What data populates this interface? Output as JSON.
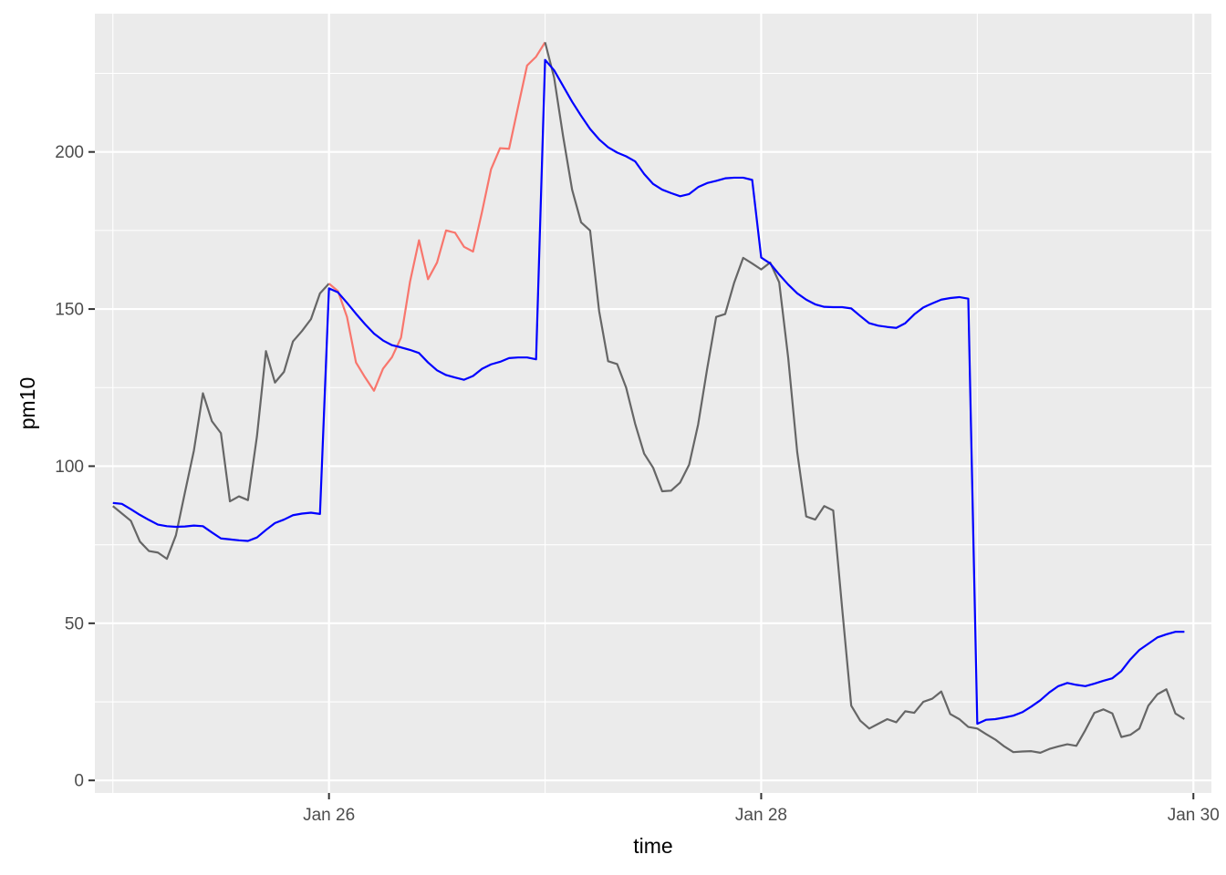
{
  "chart_data": {
    "type": "line",
    "title": "",
    "xlabel": "time",
    "ylabel": "pm10",
    "xlim": [
      "2024-01-24T22:00",
      "2024-01-30T02:00"
    ],
    "ylim": [
      -4,
      244
    ],
    "x_ticks": [
      {
        "value": "2024-01-26T00:00",
        "label": "Jan 26"
      },
      {
        "value": "2024-01-28T00:00",
        "label": "Jan 28"
      },
      {
        "value": "2024-01-30T00:00",
        "label": "Jan 30"
      }
    ],
    "y_ticks": [
      {
        "value": 0,
        "label": "0"
      },
      {
        "value": 50,
        "label": "50"
      },
      {
        "value": 100,
        "label": "100"
      },
      {
        "value": 150,
        "label": "150"
      },
      {
        "value": 200,
        "label": "200"
      }
    ],
    "grid": true,
    "legend": "none",
    "colors": {
      "panel": "#ebebeb",
      "gridline": "#ffffff",
      "observed": "#666666",
      "highlight": "#f8766d",
      "forecast": "#0000ff"
    },
    "series": [
      {
        "color": "#666666",
        "points": [
          [
            "2024-01-25T00:00",
            87.3
          ],
          [
            "2024-01-25T02:00",
            82.6
          ],
          [
            "2024-01-25T03:00",
            76.0
          ],
          [
            "2024-01-25T04:00",
            73.0
          ],
          [
            "2024-01-25T05:00",
            72.5
          ],
          [
            "2024-01-25T06:00",
            70.5
          ],
          [
            "2024-01-25T07:00",
            78.0
          ],
          [
            "2024-01-25T08:00",
            91.6
          ],
          [
            "2024-01-25T09:00",
            105.0
          ],
          [
            "2024-01-25T10:00",
            123.2
          ],
          [
            "2024-01-25T11:00",
            114.3
          ],
          [
            "2024-01-25T12:00",
            110.5
          ],
          [
            "2024-01-25T13:00",
            88.8
          ],
          [
            "2024-01-25T14:00",
            90.4
          ],
          [
            "2024-01-25T15:00",
            89.2
          ],
          [
            "2024-01-25T16:00",
            109.5
          ],
          [
            "2024-01-25T17:00",
            136.6
          ],
          [
            "2024-01-25T18:00",
            126.6
          ],
          [
            "2024-01-25T19:00",
            130.0
          ],
          [
            "2024-01-25T20:00",
            139.7
          ],
          [
            "2024-01-25T21:00",
            143.0
          ],
          [
            "2024-01-25T22:00",
            146.8
          ],
          [
            "2024-01-25T23:00",
            155.0
          ],
          [
            "2024-01-26T00:00",
            158.1
          ]
        ]
      },
      {
        "color": "#f8766d",
        "points": [
          [
            "2024-01-26T00:00",
            158.1
          ],
          [
            "2024-01-26T01:00",
            155.7
          ],
          [
            "2024-01-26T02:00",
            147.5
          ],
          [
            "2024-01-26T03:00",
            133.0
          ],
          [
            "2024-01-26T04:00",
            128.3
          ],
          [
            "2024-01-26T05:00",
            124.0
          ],
          [
            "2024-01-26T06:00",
            131.0
          ],
          [
            "2024-01-26T07:00",
            134.7
          ],
          [
            "2024-01-26T08:00",
            140.9
          ],
          [
            "2024-01-26T09:00",
            158.7
          ],
          [
            "2024-01-26T10:00",
            171.9
          ],
          [
            "2024-01-26T11:00",
            159.5
          ],
          [
            "2024-01-26T12:00",
            164.8
          ],
          [
            "2024-01-26T13:00",
            175.0
          ],
          [
            "2024-01-26T14:00",
            174.3
          ],
          [
            "2024-01-26T15:00",
            169.8
          ],
          [
            "2024-01-26T16:00",
            168.3
          ],
          [
            "2024-01-26T17:00",
            181.0
          ],
          [
            "2024-01-26T18:00",
            194.5
          ],
          [
            "2024-01-26T19:00",
            201.2
          ],
          [
            "2024-01-26T20:00",
            201.0
          ],
          [
            "2024-01-26T21:00",
            214.3
          ],
          [
            "2024-01-26T22:00",
            227.5
          ],
          [
            "2024-01-26T23:00",
            230.3
          ],
          [
            "2024-01-27T00:00",
            234.9
          ]
        ]
      },
      {
        "color": "#666666",
        "points": [
          [
            "2024-01-27T00:00",
            234.9
          ],
          [
            "2024-01-27T01:00",
            223.7
          ],
          [
            "2024-01-27T02:00",
            205.0
          ],
          [
            "2024-01-27T03:00",
            188.0
          ],
          [
            "2024-01-27T04:00",
            177.6
          ],
          [
            "2024-01-27T05:00",
            175.0
          ],
          [
            "2024-01-27T06:00",
            149.4
          ],
          [
            "2024-01-27T07:00",
            133.4
          ],
          [
            "2024-01-27T08:00",
            132.5
          ],
          [
            "2024-01-27T09:00",
            125.0
          ],
          [
            "2024-01-27T10:00",
            113.5
          ],
          [
            "2024-01-27T11:00",
            104.0
          ],
          [
            "2024-01-27T12:00",
            99.5
          ],
          [
            "2024-01-27T13:00",
            92.0
          ],
          [
            "2024-01-27T14:00",
            92.2
          ],
          [
            "2024-01-27T15:00",
            94.8
          ],
          [
            "2024-01-27T16:00",
            100.5
          ],
          [
            "2024-01-27T17:00",
            113.3
          ],
          [
            "2024-01-27T18:00",
            131.0
          ],
          [
            "2024-01-27T19:00",
            147.5
          ],
          [
            "2024-01-27T20:00",
            148.4
          ],
          [
            "2024-01-27T21:00",
            158.4
          ],
          [
            "2024-01-27T22:00",
            166.3
          ],
          [
            "2024-01-27T23:00",
            164.5
          ],
          [
            "2024-01-28T00:00",
            162.6
          ],
          [
            "2024-01-28T01:00",
            164.8
          ],
          [
            "2024-01-28T02:00",
            158.5
          ],
          [
            "2024-01-28T03:00",
            134.5
          ],
          [
            "2024-01-28T04:00",
            104.5
          ],
          [
            "2024-01-28T05:00",
            84.0
          ],
          [
            "2024-01-28T06:00",
            83.0
          ],
          [
            "2024-01-28T07:00",
            87.3
          ],
          [
            "2024-01-28T08:00",
            85.9
          ],
          [
            "2024-01-28T09:00",
            54.5
          ],
          [
            "2024-01-28T10:00",
            23.8
          ],
          [
            "2024-01-28T11:00",
            19.0
          ],
          [
            "2024-01-28T12:00",
            16.5
          ],
          [
            "2024-01-28T13:00",
            18.0
          ],
          [
            "2024-01-28T14:00",
            19.5
          ],
          [
            "2024-01-28T15:00",
            18.5
          ],
          [
            "2024-01-28T16:00",
            22.0
          ],
          [
            "2024-01-28T17:00",
            21.5
          ],
          [
            "2024-01-28T18:00",
            25.0
          ],
          [
            "2024-01-28T19:00",
            26.0
          ],
          [
            "2024-01-28T20:00",
            28.3
          ],
          [
            "2024-01-28T21:00",
            21.1
          ],
          [
            "2024-01-28T22:00",
            19.5
          ],
          [
            "2024-01-28T23:00",
            17.0
          ],
          [
            "2024-01-29T00:00",
            16.5
          ],
          [
            "2024-01-29T01:00",
            14.7
          ],
          [
            "2024-01-29T02:00",
            13.0
          ],
          [
            "2024-01-29T03:00",
            10.8
          ],
          [
            "2024-01-29T04:00",
            9.0
          ],
          [
            "2024-01-29T05:00",
            9.2
          ],
          [
            "2024-01-29T06:00",
            9.3
          ],
          [
            "2024-01-29T07:00",
            8.8
          ],
          [
            "2024-01-29T08:00",
            10.0
          ],
          [
            "2024-01-29T09:00",
            10.8
          ],
          [
            "2024-01-29T10:00",
            11.5
          ],
          [
            "2024-01-29T11:00",
            11.0
          ],
          [
            "2024-01-29T12:00",
            16.0
          ],
          [
            "2024-01-29T13:00",
            21.5
          ],
          [
            "2024-01-29T14:00",
            22.6
          ],
          [
            "2024-01-29T15:00",
            21.3
          ],
          [
            "2024-01-29T16:00",
            13.8
          ],
          [
            "2024-01-29T17:00",
            14.5
          ],
          [
            "2024-01-29T18:00",
            16.5
          ],
          [
            "2024-01-29T19:00",
            23.8
          ],
          [
            "2024-01-29T20:00",
            27.4
          ],
          [
            "2024-01-29T21:00",
            29.0
          ],
          [
            "2024-01-29T22:00",
            21.3
          ],
          [
            "2024-01-29T23:00",
            19.5
          ]
        ]
      },
      {
        "color": "#0000ff",
        "points": [
          [
            "2024-01-25T00:00",
            88.3
          ],
          [
            "2024-01-25T01:00",
            88.0
          ],
          [
            "2024-01-25T02:00",
            86.3
          ],
          [
            "2024-01-25T03:00",
            84.5
          ],
          [
            "2024-01-25T04:00",
            82.9
          ],
          [
            "2024-01-25T05:00",
            81.4
          ],
          [
            "2024-01-25T06:00",
            80.9
          ],
          [
            "2024-01-25T07:00",
            80.7
          ],
          [
            "2024-01-25T08:00",
            80.8
          ],
          [
            "2024-01-25T09:00",
            81.1
          ],
          [
            "2024-01-25T10:00",
            80.9
          ],
          [
            "2024-01-25T11:00",
            78.9
          ],
          [
            "2024-01-25T12:00",
            77.0
          ],
          [
            "2024-01-25T13:00",
            76.7
          ],
          [
            "2024-01-25T14:00",
            76.4
          ],
          [
            "2024-01-25T15:00",
            76.2
          ],
          [
            "2024-01-25T16:00",
            77.3
          ],
          [
            "2024-01-25T17:00",
            79.7
          ],
          [
            "2024-01-25T18:00",
            81.9
          ],
          [
            "2024-01-25T19:00",
            83.0
          ],
          [
            "2024-01-25T20:00",
            84.4
          ],
          [
            "2024-01-25T21:00",
            84.9
          ],
          [
            "2024-01-25T22:00",
            85.2
          ],
          [
            "2024-01-25T23:00",
            84.8
          ],
          [
            "2024-01-26T00:00",
            156.6
          ],
          [
            "2024-01-26T01:00",
            155.3
          ],
          [
            "2024-01-26T02:00",
            152.0
          ],
          [
            "2024-01-26T03:00",
            148.5
          ],
          [
            "2024-01-26T04:00",
            145.2
          ],
          [
            "2024-01-26T05:00",
            142.2
          ],
          [
            "2024-01-26T06:00",
            140.0
          ],
          [
            "2024-01-26T07:00",
            138.5
          ],
          [
            "2024-01-26T08:00",
            137.8
          ],
          [
            "2024-01-26T09:00",
            137.0
          ],
          [
            "2024-01-26T10:00",
            136.0
          ],
          [
            "2024-01-26T11:00",
            133.0
          ],
          [
            "2024-01-26T12:00",
            130.5
          ],
          [
            "2024-01-26T13:00",
            129.0
          ],
          [
            "2024-01-26T14:00",
            128.2
          ],
          [
            "2024-01-26T15:00",
            127.5
          ],
          [
            "2024-01-26T16:00",
            128.7
          ],
          [
            "2024-01-26T17:00",
            131.0
          ],
          [
            "2024-01-26T18:00",
            132.4
          ],
          [
            "2024-01-26T19:00",
            133.2
          ],
          [
            "2024-01-26T20:00",
            134.4
          ],
          [
            "2024-01-26T21:00",
            134.6
          ],
          [
            "2024-01-26T22:00",
            134.6
          ],
          [
            "2024-01-26T23:00",
            134.0
          ],
          [
            "2024-01-27T00:00",
            229.3
          ],
          [
            "2024-01-27T01:00",
            226.0
          ],
          [
            "2024-01-27T02:00",
            221.0
          ],
          [
            "2024-01-27T03:00",
            216.0
          ],
          [
            "2024-01-27T04:00",
            211.5
          ],
          [
            "2024-01-27T05:00",
            207.3
          ],
          [
            "2024-01-27T06:00",
            204.0
          ],
          [
            "2024-01-27T07:00",
            201.5
          ],
          [
            "2024-01-27T08:00",
            199.8
          ],
          [
            "2024-01-27T09:00",
            198.6
          ],
          [
            "2024-01-27T10:00",
            197.0
          ],
          [
            "2024-01-27T11:00",
            193.0
          ],
          [
            "2024-01-27T12:00",
            189.8
          ],
          [
            "2024-01-27T13:00",
            188.0
          ],
          [
            "2024-01-27T14:00",
            186.9
          ],
          [
            "2024-01-27T15:00",
            185.9
          ],
          [
            "2024-01-27T16:00",
            186.6
          ],
          [
            "2024-01-27T17:00",
            188.8
          ],
          [
            "2024-01-27T18:00",
            190.1
          ],
          [
            "2024-01-27T19:00",
            190.8
          ],
          [
            "2024-01-27T20:00",
            191.6
          ],
          [
            "2024-01-27T21:00",
            191.8
          ],
          [
            "2024-01-27T22:00",
            191.8
          ],
          [
            "2024-01-27T23:00",
            191.1
          ],
          [
            "2024-01-28T00:00",
            166.4
          ],
          [
            "2024-01-28T01:00",
            164.5
          ],
          [
            "2024-01-28T02:00",
            161.0
          ],
          [
            "2024-01-28T03:00",
            157.8
          ],
          [
            "2024-01-28T04:00",
            155.0
          ],
          [
            "2024-01-28T05:00",
            153.0
          ],
          [
            "2024-01-28T06:00",
            151.5
          ],
          [
            "2024-01-28T07:00",
            150.7
          ],
          [
            "2024-01-28T08:00",
            150.6
          ],
          [
            "2024-01-28T09:00",
            150.6
          ],
          [
            "2024-01-28T10:00",
            150.2
          ],
          [
            "2024-01-28T11:00",
            147.8
          ],
          [
            "2024-01-28T12:00",
            145.5
          ],
          [
            "2024-01-28T13:00",
            144.7
          ],
          [
            "2024-01-28T14:00",
            144.3
          ],
          [
            "2024-01-28T15:00",
            144.0
          ],
          [
            "2024-01-28T16:00",
            145.5
          ],
          [
            "2024-01-28T17:00",
            148.3
          ],
          [
            "2024-01-28T18:00",
            150.5
          ],
          [
            "2024-01-28T19:00",
            151.8
          ],
          [
            "2024-01-28T20:00",
            153.0
          ],
          [
            "2024-01-28T21:00",
            153.5
          ],
          [
            "2024-01-28T22:00",
            153.8
          ],
          [
            "2024-01-28T23:00",
            153.3
          ],
          [
            "2024-01-29T00:00",
            18.0
          ],
          [
            "2024-01-29T01:00",
            19.3
          ],
          [
            "2024-01-29T02:00",
            19.5
          ],
          [
            "2024-01-29T03:00",
            20.0
          ],
          [
            "2024-01-29T04:00",
            20.6
          ],
          [
            "2024-01-29T05:00",
            21.7
          ],
          [
            "2024-01-29T06:00",
            23.5
          ],
          [
            "2024-01-29T07:00",
            25.5
          ],
          [
            "2024-01-29T08:00",
            28.0
          ],
          [
            "2024-01-29T09:00",
            30.0
          ],
          [
            "2024-01-29T10:00",
            31.0
          ],
          [
            "2024-01-29T11:00",
            30.4
          ],
          [
            "2024-01-29T12:00",
            30.0
          ],
          [
            "2024-01-29T13:00",
            30.8
          ],
          [
            "2024-01-29T14:00",
            31.7
          ],
          [
            "2024-01-29T15:00",
            32.5
          ],
          [
            "2024-01-29T16:00",
            34.8
          ],
          [
            "2024-01-29T17:00",
            38.5
          ],
          [
            "2024-01-29T18:00",
            41.5
          ],
          [
            "2024-01-29T19:00",
            43.5
          ],
          [
            "2024-01-29T20:00",
            45.5
          ],
          [
            "2024-01-29T21:00",
            46.5
          ],
          [
            "2024-01-29T22:00",
            47.3
          ],
          [
            "2024-01-29T23:00",
            47.3
          ]
        ]
      }
    ]
  }
}
